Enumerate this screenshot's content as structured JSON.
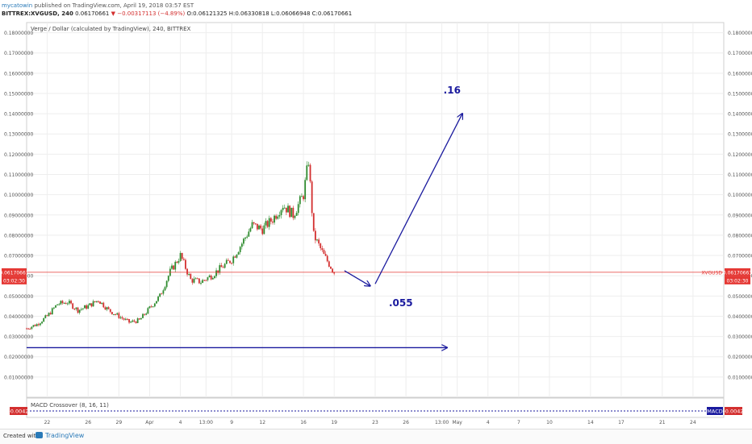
{
  "header": {
    "user": "mycatowin",
    "published": "published on TradingView.com, April 19, 2018 03:57 EST",
    "symbol": "BITTREX:XVGUSD, 240",
    "last": "0.06170661",
    "change": "−0.00317113 (−4.89%)",
    "ohlc": "O:0.06121325 H:0.06330818 L:0.06066948 C:0.06170661"
  },
  "chart_data": {
    "type": "candlestick",
    "title": "Verge / Dollar (calculated by TradingView), 240, BITTREX",
    "ylim": [
      0.0,
      0.185
    ],
    "y_ticks": [
      "0.18000000",
      "0.17000000",
      "0.16000000",
      "0.15000000",
      "0.14000000",
      "0.13000000",
      "0.12000000",
      "0.11000000",
      "0.10000000",
      "0.09000000",
      "0.08000000",
      "0.07000000",
      "0.06000000",
      "0.05000000",
      "0.04000000",
      "0.03000000",
      "0.02000000",
      "0.01000000"
    ],
    "x_ticks": [
      "22",
      "26",
      "29",
      "Apr",
      "4",
      "13:00",
      "9",
      "12",
      "16",
      "19",
      "23",
      "26",
      "13:00",
      "May",
      "4",
      "7",
      "10",
      "14",
      "17",
      "21",
      "24"
    ],
    "x_tick_days": [
      -10,
      -6,
      -3,
      0,
      3,
      5.5,
      8,
      11,
      15,
      18,
      22,
      25,
      28.5,
      30,
      33,
      36,
      39,
      43,
      46,
      50,
      53
    ],
    "xlim": [
      -12,
      56
    ],
    "price_path_days": [
      -12,
      -11,
      -10,
      -9,
      -8,
      -7,
      -6,
      -5,
      -4,
      -3,
      -2,
      -1,
      0,
      1,
      2,
      3,
      4,
      5,
      6,
      7,
      8,
      9,
      10,
      11,
      12,
      13,
      14,
      15,
      15.5,
      16,
      17,
      18
    ],
    "price_path_closes": [
      0.034,
      0.036,
      0.04,
      0.046,
      0.047,
      0.043,
      0.045,
      0.048,
      0.043,
      0.04,
      0.037,
      0.038,
      0.044,
      0.05,
      0.062,
      0.07,
      0.058,
      0.057,
      0.06,
      0.064,
      0.068,
      0.076,
      0.085,
      0.083,
      0.088,
      0.095,
      0.09,
      0.1,
      0.117,
      0.08,
      0.07,
      0.0617
    ],
    "current_price": {
      "label": "XVGUSD",
      "value": "0.06170661",
      "time": "03:02:30"
    },
    "annotations": [
      {
        "type": "text",
        "text": ".16",
        "x": 29.5,
        "y": 0.15
      },
      {
        "type": "text",
        "text": ".055",
        "x": 24.5,
        "y": 0.045
      },
      {
        "type": "arrow",
        "from": [
          19,
          0.0625
        ],
        "to": [
          21.5,
          0.055
        ]
      },
      {
        "type": "arrow",
        "from": [
          22,
          0.056
        ],
        "to": [
          30.5,
          0.14
        ]
      },
      {
        "type": "arrow",
        "from": [
          -12,
          0.0245
        ],
        "to": [
          29,
          0.0245
        ]
      }
    ],
    "grid": true
  },
  "macd": {
    "label": "MACD Crossover (8, 16, 11)",
    "value": "-0.0042",
    "right_tag": "MACD"
  },
  "footer": {
    "created_with": "Created with",
    "brand": "TradingView"
  },
  "colors": {
    "up": "#2e8b2e",
    "down": "#d32f2f",
    "annotation": "#1a1a9e",
    "price_line": "#e53935",
    "grid": "#eeeeee"
  }
}
